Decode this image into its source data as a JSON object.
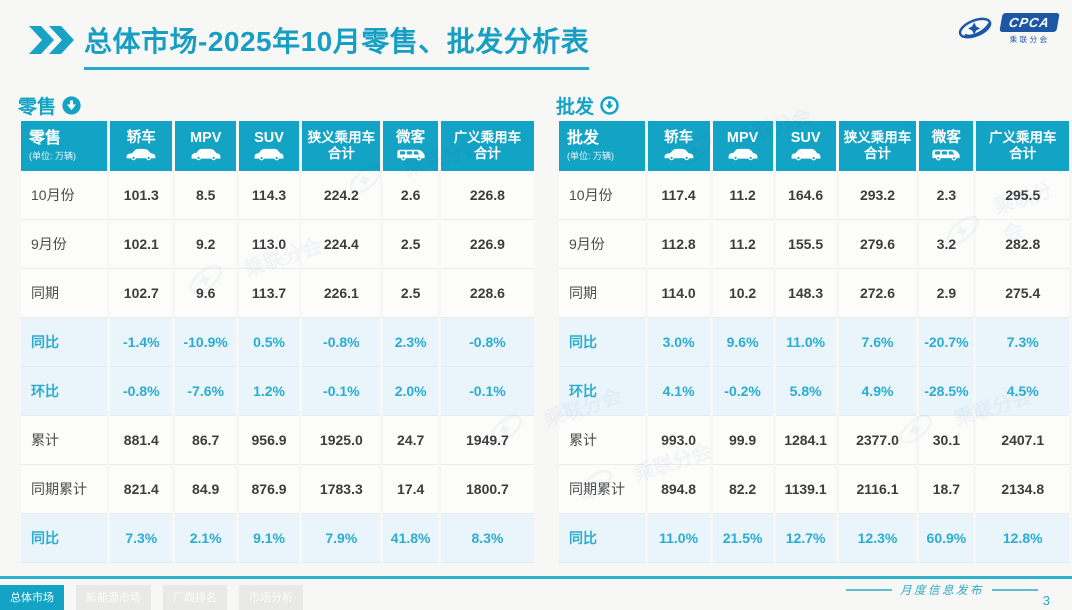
{
  "header": {
    "title": "总体市场-2025年10月零售、批发分析表"
  },
  "logo": {
    "text": "CPCA",
    "subtext": "乘联分会"
  },
  "watermark": {
    "text": "乘联分会"
  },
  "columns_meta": [
    {
      "text": "轿车",
      "icon": "sedan-icon"
    },
    {
      "text": "MPV",
      "icon": "mpv-icon"
    },
    {
      "text": "SUV",
      "icon": "suv-icon"
    },
    {
      "text": "狭义乘用车\n合计",
      "icon": null
    },
    {
      "text": "微客",
      "icon": "van-icon"
    },
    {
      "text": "广义乘用车\n合计",
      "icon": null
    }
  ],
  "chart_data": [
    {
      "type": "table",
      "title": "零售",
      "unit": "(单位: 万辆)",
      "arrow_icon": "down-arrow-circle-filled-icon",
      "columns": [
        "轿车",
        "MPV",
        "SUV",
        "狭义乘用车合计",
        "微客",
        "广义乘用车合计"
      ],
      "rows": [
        {
          "label": "10月份",
          "style": "normal",
          "values": [
            "101.3",
            "8.5",
            "114.3",
            "224.2",
            "2.6",
            "226.8"
          ]
        },
        {
          "label": "9月份",
          "style": "normal",
          "values": [
            "102.1",
            "9.2",
            "113.0",
            "224.4",
            "2.5",
            "226.9"
          ]
        },
        {
          "label": "同期",
          "style": "normal",
          "values": [
            "102.7",
            "9.6",
            "113.7",
            "226.1",
            "2.5",
            "228.6"
          ]
        },
        {
          "label": "同比",
          "style": "highlight",
          "values": [
            "-1.4%",
            "-10.9%",
            "0.5%",
            "-0.8%",
            "2.3%",
            "-0.8%"
          ]
        },
        {
          "label": "环比",
          "style": "highlight",
          "values": [
            "-0.8%",
            "-7.6%",
            "1.2%",
            "-0.1%",
            "2.0%",
            "-0.1%"
          ]
        },
        {
          "label": "累计",
          "style": "normal",
          "values": [
            "881.4",
            "86.7",
            "956.9",
            "1925.0",
            "24.7",
            "1949.7"
          ]
        },
        {
          "label": "同期累计",
          "style": "normal",
          "values": [
            "821.4",
            "84.9",
            "876.9",
            "1783.3",
            "17.4",
            "1800.7"
          ]
        },
        {
          "label": "同比",
          "style": "highlight",
          "values": [
            "7.3%",
            "2.1%",
            "9.1%",
            "7.9%",
            "41.8%",
            "8.3%"
          ]
        }
      ]
    },
    {
      "type": "table",
      "title": "批发",
      "unit": "(单位: 万辆)",
      "arrow_icon": "down-arrow-circle-outline-icon",
      "columns": [
        "轿车",
        "MPV",
        "SUV",
        "狭义乘用车合计",
        "微客",
        "广义乘用车合计"
      ],
      "rows": [
        {
          "label": "10月份",
          "style": "normal",
          "values": [
            "117.4",
            "11.2",
            "164.6",
            "293.2",
            "2.3",
            "295.5"
          ]
        },
        {
          "label": "9月份",
          "style": "normal",
          "values": [
            "112.8",
            "11.2",
            "155.5",
            "279.6",
            "3.2",
            "282.8"
          ]
        },
        {
          "label": "同期",
          "style": "normal",
          "values": [
            "114.0",
            "10.2",
            "148.3",
            "272.6",
            "2.9",
            "275.4"
          ]
        },
        {
          "label": "同比",
          "style": "highlight",
          "values": [
            "3.0%",
            "9.6%",
            "11.0%",
            "7.6%",
            "-20.7%",
            "7.3%"
          ]
        },
        {
          "label": "环比",
          "style": "highlight",
          "values": [
            "4.1%",
            "-0.2%",
            "5.8%",
            "4.9%",
            "-28.5%",
            "4.5%"
          ]
        },
        {
          "label": "累计",
          "style": "normal",
          "values": [
            "993.0",
            "99.9",
            "1284.1",
            "2377.0",
            "30.1",
            "2407.1"
          ]
        },
        {
          "label": "同期累计",
          "style": "normal",
          "values": [
            "894.8",
            "82.2",
            "1139.1",
            "2116.1",
            "18.7",
            "2134.8"
          ]
        },
        {
          "label": "同比",
          "style": "highlight",
          "values": [
            "11.0%",
            "21.5%",
            "12.7%",
            "12.3%",
            "60.9%",
            "12.8%"
          ]
        }
      ]
    }
  ],
  "footer": {
    "tabs": [
      {
        "label": "总体市场",
        "active": true
      },
      {
        "label": "新能源市场",
        "active": false
      },
      {
        "label": "厂商排名",
        "active": false
      },
      {
        "label": "市场分析",
        "active": false
      }
    ],
    "note": "月度信息发布",
    "page_number": "3"
  },
  "colors": {
    "teal": "#13a3c5",
    "title_teal": "#169fc2",
    "highlight_bg": "#e9f5fa",
    "highlight_text": "#2bacd0",
    "logo_blue": "#1c57a5",
    "page_bg": "#f7f7f5"
  }
}
